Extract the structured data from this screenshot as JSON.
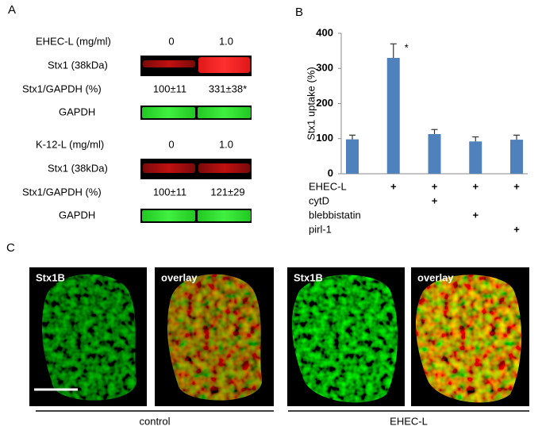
{
  "panel_a": {
    "label": "A",
    "blots": [
      {
        "treatment": "EHEC-L (mg/ml)",
        "doses": [
          "0",
          "1.0"
        ],
        "band": "Stx1 (38kDa)",
        "ratio_label": "Stx1/GAPDH  (%)",
        "ratios": [
          "100±11",
          "331±38*"
        ],
        "control": "GAPDH"
      },
      {
        "treatment": "K-12-L (mg/ml)",
        "doses": [
          "0",
          "1.0"
        ],
        "band": "Stx1 (38kDa)",
        "ratio_label": "Stx1/GAPDH  (%)",
        "ratios": [
          "100±11",
          "121±29"
        ],
        "control": "GAPDH"
      }
    ]
  },
  "chart_data": {
    "type": "bar",
    "label": "B",
    "y_label": "Stx1 uptake (%)",
    "values": [
      98,
      330,
      113,
      92,
      97
    ],
    "errors": [
      12,
      40,
      13,
      13,
      13
    ],
    "color": "#4f81bd",
    "ylim": [
      0,
      400
    ],
    "yticks": [
      0,
      100,
      200,
      300,
      400
    ],
    "annotation": "*",
    "treatments": [
      {
        "name": "EHEC-L",
        "marks": [
          null,
          "+",
          "+",
          "+",
          "+"
        ]
      },
      {
        "name": "cytD",
        "marks": [
          null,
          null,
          "+",
          null,
          null
        ]
      },
      {
        "name": "blebbistatin",
        "marks": [
          null,
          null,
          null,
          "+",
          null
        ]
      },
      {
        "name": "pirl-1",
        "marks": [
          null,
          null,
          null,
          null,
          "+"
        ]
      }
    ]
  },
  "panel_c": {
    "label": "C",
    "images": [
      "Stx1B",
      "overlay",
      "Stx1B",
      "overlay"
    ],
    "groups": [
      "control",
      "EHEC-L"
    ]
  }
}
